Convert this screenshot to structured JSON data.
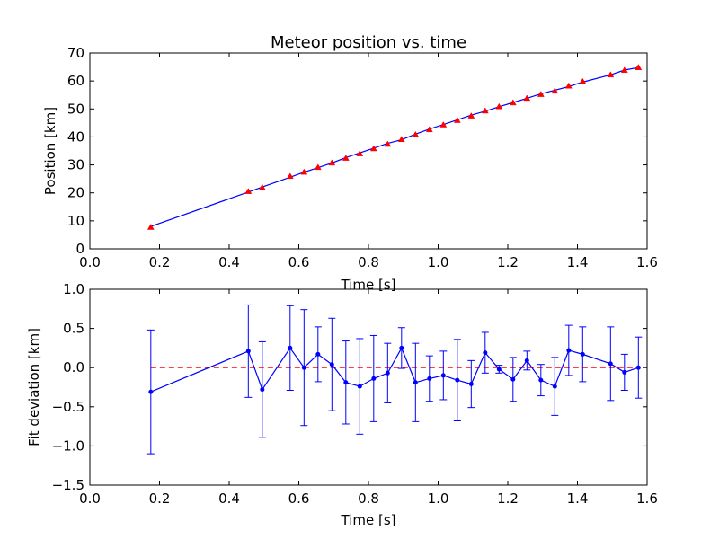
{
  "chart_data": [
    {
      "type": "scatter",
      "title": "Meteor position vs. time",
      "xlabel": "Time [s]",
      "ylabel": "Position [km]",
      "xlim": [
        0.0,
        1.6
      ],
      "ylim": [
        0,
        70
      ],
      "xticks": [
        "0.0",
        "0.2",
        "0.4",
        "0.6",
        "0.8",
        "1.0",
        "1.2",
        "1.4",
        "1.6"
      ],
      "yticks": [
        "0",
        "10",
        "20",
        "30",
        "40",
        "50",
        "60",
        "70"
      ],
      "grid": false,
      "series": [
        {
          "kind": "markers",
          "color": "#ff0000",
          "x": [
            0.175,
            0.455,
            0.495,
            0.575,
            0.615,
            0.655,
            0.695,
            0.735,
            0.775,
            0.815,
            0.855,
            0.895,
            0.935,
            0.975,
            1.015,
            1.055,
            1.095,
            1.135,
            1.175,
            1.215,
            1.255,
            1.295,
            1.335,
            1.375,
            1.415,
            1.495,
            1.535,
            1.575
          ],
          "y": [
            7.7,
            20.5,
            21.9,
            25.9,
            27.4,
            29.1,
            30.7,
            32.4,
            34.0,
            35.8,
            37.4,
            39.1,
            40.8,
            42.6,
            44.3,
            45.9,
            47.5,
            49.3,
            50.8,
            52.2,
            53.8,
            55.2,
            56.4,
            58.2,
            59.8,
            62.2,
            63.8,
            64.8
          ]
        },
        {
          "kind": "line",
          "color": "#0000ff",
          "x": [
            0.175,
            0.455,
            0.495,
            0.575,
            0.615,
            0.655,
            0.695,
            0.735,
            0.775,
            0.815,
            0.855,
            0.895,
            0.935,
            0.975,
            1.015,
            1.055,
            1.095,
            1.135,
            1.175,
            1.215,
            1.255,
            1.295,
            1.335,
            1.375,
            1.415,
            1.495,
            1.535,
            1.575
          ],
          "y": [
            8.0,
            20.3,
            22.1,
            25.6,
            27.4,
            29.0,
            30.7,
            32.6,
            34.3,
            36.0,
            37.7,
            39.0,
            41.0,
            42.8,
            44.4,
            46.1,
            47.8,
            49.2,
            50.8,
            52.3,
            53.8,
            55.4,
            56.7,
            58.0,
            59.6,
            62.2,
            63.9,
            64.8
          ]
        }
      ]
    },
    {
      "type": "line",
      "xlabel": "Time [s]",
      "ylabel": "Fit deviation [km]",
      "xlim": [
        0.0,
        1.6
      ],
      "ylim": [
        -1.5,
        1.0
      ],
      "xticks": [
        "0.0",
        "0.2",
        "0.4",
        "0.6",
        "0.8",
        "1.0",
        "1.2",
        "1.4",
        "1.6"
      ],
      "yticks": [
        "−1.5",
        "−1.0",
        "−0.5",
        "0.0",
        "0.5",
        "1.0"
      ],
      "grid": false,
      "reference_line": {
        "y": 0.0,
        "color": "#ff0000",
        "style": "dashed"
      },
      "series": [
        {
          "kind": "errorbar",
          "color": "#0000ff",
          "x": [
            0.175,
            0.455,
            0.495,
            0.575,
            0.615,
            0.655,
            0.695,
            0.735,
            0.775,
            0.815,
            0.855,
            0.895,
            0.935,
            0.975,
            1.015,
            1.055,
            1.095,
            1.135,
            1.175,
            1.215,
            1.255,
            1.295,
            1.335,
            1.375,
            1.415,
            1.495,
            1.535,
            1.575
          ],
          "y": [
            -0.31,
            0.21,
            -0.28,
            0.25,
            0.0,
            0.17,
            0.04,
            -0.19,
            -0.24,
            -0.14,
            -0.07,
            0.25,
            -0.19,
            -0.14,
            -0.1,
            -0.16,
            -0.21,
            0.19,
            -0.02,
            -0.15,
            0.09,
            -0.16,
            -0.24,
            0.22,
            0.17,
            0.05,
            -0.06,
            0.0
          ],
          "err": [
            0.79,
            0.59,
            0.61,
            0.54,
            0.74,
            0.35,
            0.59,
            0.53,
            0.61,
            0.55,
            0.38,
            0.26,
            0.5,
            0.29,
            0.31,
            0.52,
            0.3,
            0.26,
            0.05,
            0.28,
            0.12,
            0.2,
            0.37,
            0.32,
            0.35,
            0.47,
            0.23,
            0.39
          ]
        }
      ]
    }
  ]
}
